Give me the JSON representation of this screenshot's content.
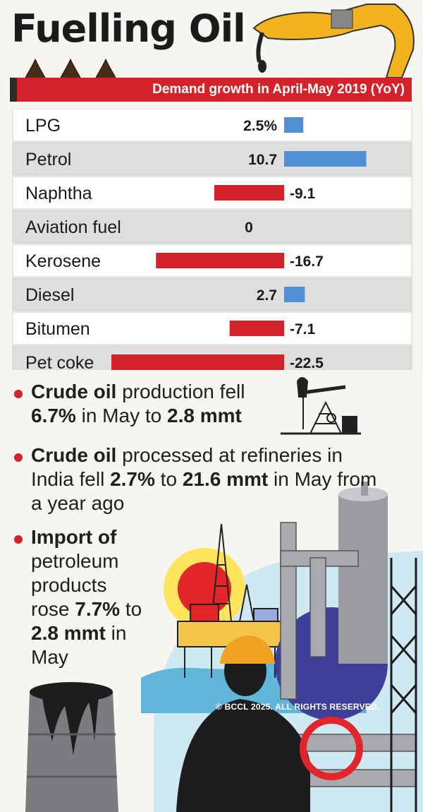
{
  "header": {
    "title": "Fuelling Oil",
    "subtitle": "Demand growth in April-May 2019 (YoY)"
  },
  "colors": {
    "positive": "#4f8fd3",
    "negative": "#d32229",
    "row_light": "#ffffff",
    "row_dark": "#dedede"
  },
  "chart_data": {
    "type": "bar",
    "orientation": "horizontal",
    "title": "Demand growth in April-May 2019 (YoY)",
    "categories": [
      "LPG",
      "Petrol",
      "Naphtha",
      "Aviation fuel",
      "Kerosene",
      "Diesel",
      "Bitumen",
      "Pet coke"
    ],
    "values": [
      2.5,
      10.7,
      -9.1,
      0,
      -16.7,
      2.7,
      -7.1,
      -22.5
    ],
    "value_labels": [
      "2.5%",
      "10.7",
      "-9.1",
      "0",
      "-16.7",
      "2.7",
      "-7.1",
      "-22.5"
    ],
    "unit": "%",
    "xlim": [
      -22.5,
      10.7
    ]
  },
  "bullets": [
    {
      "parts": [
        {
          "t": "Crude oil",
          "b": true
        },
        {
          "t": " production fell ",
          "b": false
        },
        {
          "t": "6.7%",
          "b": true
        },
        {
          "t": " in May to ",
          "b": false
        },
        {
          "t": "2.8 mmt",
          "b": true
        }
      ]
    },
    {
      "parts": [
        {
          "t": "Crude oil",
          "b": true
        },
        {
          "t": " processed at refineries in India fell ",
          "b": false
        },
        {
          "t": "2.7%",
          "b": true
        },
        {
          "t": " to ",
          "b": false
        },
        {
          "t": "21.6 mmt",
          "b": true
        },
        {
          "t": " in May from a year ago",
          "b": false
        }
      ]
    },
    {
      "parts": [
        {
          "t": "Import of",
          "b": true
        },
        {
          "t": " petroleum products rose ",
          "b": false
        },
        {
          "t": "7.7%",
          "b": true
        },
        {
          "t": " to ",
          "b": false
        },
        {
          "t": "2.8 mmt",
          "b": true
        },
        {
          "t": " in May",
          "b": false
        }
      ]
    }
  ],
  "footer": {
    "copyright": "© BCCL 2025. ALL RIGHTS RESERVED."
  }
}
